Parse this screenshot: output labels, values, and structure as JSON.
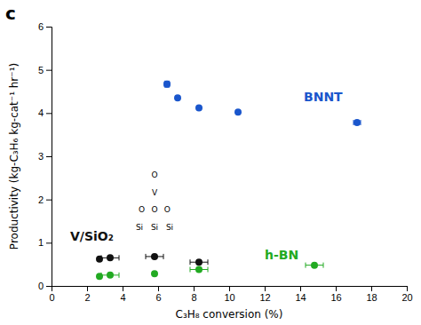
{
  "chart_data": {
    "type": "scatter",
    "title": "c",
    "x_label": "C₃H₈ conversion (%)",
    "y_label": "Productivity (kg-C₃H₆ kg-cat⁻¹ hr⁻¹)",
    "xlim": [
      0,
      20
    ],
    "ylim": [
      0,
      6
    ],
    "xticks": [
      0,
      2,
      4,
      6,
      8,
      10,
      12,
      14,
      16,
      18,
      20
    ],
    "yticks": [
      0,
      1,
      2,
      3,
      4,
      5,
      6
    ],
    "grid": false,
    "series": [
      {
        "color": "#1a56cc",
        "x": [
          6.5,
          7.1,
          8.3,
          10.5,
          17.2
        ],
        "values": [
          4.67,
          4.35,
          4.12,
          4.02,
          3.78
        ],
        "xerr": [
          0.15,
          0.0,
          0.0,
          0.0,
          0.2
        ],
        "yerr": [
          0.07,
          0.0,
          0.0,
          0.0,
          0.05
        ]
      },
      {
        "color": "#22aa22",
        "x": [
          2.7,
          3.3,
          5.8,
          8.3,
          14.8
        ],
        "values": [
          0.22,
          0.25,
          0.28,
          0.38,
          0.48
        ],
        "xerr": [
          0.0,
          0.5,
          0.0,
          0.5,
          0.5
        ],
        "yerr": [
          0.0,
          0.0,
          0.0,
          0.04,
          0.04
        ]
      },
      {
        "color": "#111111",
        "x": [
          2.7,
          3.3,
          5.8,
          8.3
        ],
        "values": [
          0.62,
          0.65,
          0.68,
          0.55
        ],
        "xerr": [
          0.0,
          0.5,
          0.5,
          0.5
        ],
        "yerr": [
          0.02,
          0.02,
          0.05,
          0.05
        ]
      }
    ],
    "annotations": [
      {
        "text": "BNNT",
        "x": 14.2,
        "y": 4.38,
        "color": "#1a56cc"
      },
      {
        "text": "h-BN",
        "x": 12.0,
        "y": 0.72,
        "color": "#22aa22"
      },
      {
        "text": "V/SiO₂",
        "x": 1.05,
        "y": 1.15,
        "color": "#111111"
      },
      {
        "text": "Si",
        "x": 4.95,
        "y": 1.35,
        "color": "#000000"
      },
      {
        "text": "Si",
        "x": 5.8,
        "y": 1.35,
        "color": "#000000"
      },
      {
        "text": "Si",
        "x": 6.65,
        "y": 1.35,
        "color": "#000000"
      },
      {
        "text": "O",
        "x": 5.08,
        "y": 1.77,
        "color": "#000000"
      },
      {
        "text": "O",
        "x": 5.8,
        "y": 1.77,
        "color": "#000000"
      },
      {
        "text": "O",
        "x": 6.52,
        "y": 1.77,
        "color": "#000000"
      },
      {
        "text": "V",
        "x": 5.8,
        "y": 2.17,
        "color": "#000000"
      },
      {
        "text": "O",
        "x": 5.8,
        "y": 2.57,
        "color": "#000000"
      }
    ]
  }
}
